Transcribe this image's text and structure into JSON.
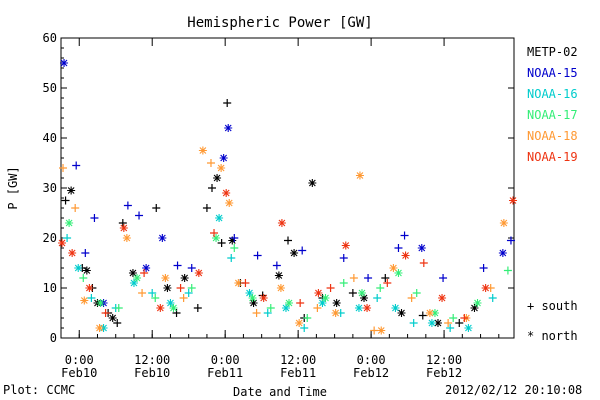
{
  "chart_data": {
    "type": "scatter",
    "title": "Hemispheric Power [GW]",
    "ylabel": "P [GW]",
    "xlabel": "Date and Time",
    "ylim": [
      0,
      60
    ],
    "yticks": [
      0,
      10,
      20,
      30,
      40,
      50,
      60
    ],
    "xlim": [
      "2012-02-09 21:00",
      "2012-02-12 23:30"
    ],
    "xticks": [
      {
        "t": "2012-02-10 00:00",
        "l1": "0:00",
        "l2": "Feb10"
      },
      {
        "t": "2012-02-10 12:00",
        "l1": "12:00",
        "l2": "Feb10"
      },
      {
        "t": "2012-02-11 00:00",
        "l1": "0:00",
        "l2": "Feb11"
      },
      {
        "t": "2012-02-11 12:00",
        "l1": "12:00",
        "l2": "Feb11"
      },
      {
        "t": "2012-02-12 00:00",
        "l1": "0:00",
        "l2": "Feb12"
      },
      {
        "t": "2012-02-12 12:00",
        "l1": "12:00",
        "l2": "Feb12"
      }
    ],
    "grid": false,
    "legend_position": "right",
    "hemisphere_legend": [
      {
        "symbol": "+",
        "label": "south"
      },
      {
        "symbol": "*",
        "label": "north"
      }
    ],
    "series": [
      {
        "name": "METP-02",
        "color": "#000000",
        "points": [
          {
            "t": "2012-02-09 21:45",
            "v": 27.5,
            "h": "S"
          },
          {
            "t": "2012-02-09 22:40",
            "v": 29.5,
            "h": "N"
          },
          {
            "t": "2012-02-10 00:30",
            "v": 14,
            "h": "S"
          },
          {
            "t": "2012-02-10 01:15",
            "v": 13.5,
            "h": "N"
          },
          {
            "t": "2012-02-10 02:10",
            "v": 10,
            "h": "S"
          },
          {
            "t": "2012-02-10 03:00",
            "v": 7,
            "h": "N"
          },
          {
            "t": "2012-02-10 04:45",
            "v": 5,
            "h": "S"
          },
          {
            "t": "2012-02-10 05:30",
            "v": 4,
            "h": "N"
          },
          {
            "t": "2012-02-10 06:15",
            "v": 3,
            "h": "S"
          },
          {
            "t": "2012-02-10 07:10",
            "v": 23,
            "h": "S"
          },
          {
            "t": "2012-02-10 08:50",
            "v": 13,
            "h": "N"
          },
          {
            "t": "2012-02-10 12:40",
            "v": 26,
            "h": "S"
          },
          {
            "t": "2012-02-10 14:30",
            "v": 10,
            "h": "N"
          },
          {
            "t": "2012-02-10 16:00",
            "v": 5,
            "h": "S"
          },
          {
            "t": "2012-02-10 17:20",
            "v": 12,
            "h": "N"
          },
          {
            "t": "2012-02-10 19:30",
            "v": 6,
            "h": "S"
          },
          {
            "t": "2012-02-10 21:00",
            "v": 26,
            "h": "S"
          },
          {
            "t": "2012-02-10 21:50",
            "v": 30,
            "h": "S"
          },
          {
            "t": "2012-02-10 22:40",
            "v": 32,
            "h": "N"
          },
          {
            "t": "2012-02-10 23:25",
            "v": 19,
            "h": "S"
          },
          {
            "t": "2012-02-11 00:20",
            "v": 47,
            "h": "S"
          },
          {
            "t": "2012-02-11 01:10",
            "v": 19.5,
            "h": "N"
          },
          {
            "t": "2012-02-11 02:30",
            "v": 11,
            "h": "S"
          },
          {
            "t": "2012-02-11 04:40",
            "v": 7,
            "h": "N"
          },
          {
            "t": "2012-02-11 06:10",
            "v": 8.5,
            "h": "S"
          },
          {
            "t": "2012-02-11 08:50",
            "v": 12.5,
            "h": "N"
          },
          {
            "t": "2012-02-11 10:20",
            "v": 19.5,
            "h": "S"
          },
          {
            "t": "2012-02-11 11:20",
            "v": 17,
            "h": "N"
          },
          {
            "t": "2012-02-11 13:00",
            "v": 4,
            "h": "S"
          },
          {
            "t": "2012-02-11 14:20",
            "v": 31,
            "h": "N"
          },
          {
            "t": "2012-02-11 16:00",
            "v": 8,
            "h": "S"
          },
          {
            "t": "2012-02-11 18:20",
            "v": 7,
            "h": "N"
          },
          {
            "t": "2012-02-11 21:00",
            "v": 9,
            "h": "S"
          },
          {
            "t": "2012-02-11 22:50",
            "v": 8,
            "h": "N"
          },
          {
            "t": "2012-02-12 02:20",
            "v": 12,
            "h": "S"
          },
          {
            "t": "2012-02-12 05:00",
            "v": 5,
            "h": "N"
          },
          {
            "t": "2012-02-12 08:30",
            "v": 4.5,
            "h": "S"
          },
          {
            "t": "2012-02-12 11:00",
            "v": 3,
            "h": "N"
          },
          {
            "t": "2012-02-12 14:30",
            "v": 3,
            "h": "S"
          },
          {
            "t": "2012-02-12 17:00",
            "v": 6,
            "h": "N"
          }
        ]
      },
      {
        "name": "NOAA-15",
        "color": "#0000cc",
        "points": [
          {
            "t": "2012-02-09 21:30",
            "v": 55,
            "h": "N"
          },
          {
            "t": "2012-02-09 23:30",
            "v": 34.5,
            "h": "S"
          },
          {
            "t": "2012-02-10 01:00",
            "v": 17,
            "h": "S"
          },
          {
            "t": "2012-02-10 02:30",
            "v": 24,
            "h": "S"
          },
          {
            "t": "2012-02-10 04:00",
            "v": 7,
            "h": "N"
          },
          {
            "t": "2012-02-10 08:00",
            "v": 26.5,
            "h": "S"
          },
          {
            "t": "2012-02-10 09:50",
            "v": 24.5,
            "h": "S"
          },
          {
            "t": "2012-02-10 11:00",
            "v": 14,
            "h": "N"
          },
          {
            "t": "2012-02-10 13:40",
            "v": 20,
            "h": "N"
          },
          {
            "t": "2012-02-10 16:10",
            "v": 14.5,
            "h": "S"
          },
          {
            "t": "2012-02-10 18:30",
            "v": 14,
            "h": "S"
          },
          {
            "t": "2012-02-10 23:45",
            "v": 36,
            "h": "N"
          },
          {
            "t": "2012-02-11 00:30",
            "v": 42,
            "h": "N"
          },
          {
            "t": "2012-02-11 01:30",
            "v": 20,
            "h": "S"
          },
          {
            "t": "2012-02-11 05:20",
            "v": 16.5,
            "h": "S"
          },
          {
            "t": "2012-02-11 08:30",
            "v": 14.5,
            "h": "S"
          },
          {
            "t": "2012-02-11 12:40",
            "v": 17.5,
            "h": "S"
          },
          {
            "t": "2012-02-11 19:30",
            "v": 16,
            "h": "S"
          },
          {
            "t": "2012-02-11 23:30",
            "v": 12,
            "h": "S"
          },
          {
            "t": "2012-02-12 04:30",
            "v": 18,
            "h": "S"
          },
          {
            "t": "2012-02-12 05:30",
            "v": 20.5,
            "h": "S"
          },
          {
            "t": "2012-02-12 08:20",
            "v": 18,
            "h": "N"
          },
          {
            "t": "2012-02-12 11:50",
            "v": 12,
            "h": "S"
          },
          {
            "t": "2012-02-12 18:30",
            "v": 14,
            "h": "S"
          },
          {
            "t": "2012-02-12 21:40",
            "v": 17,
            "h": "N"
          },
          {
            "t": "2012-02-12 23:00",
            "v": 19.5,
            "h": "S"
          }
        ]
      },
      {
        "name": "NOAA-16",
        "color": "#00cccc",
        "points": [
          {
            "t": "2012-02-09 22:00",
            "v": 20,
            "h": "S"
          },
          {
            "t": "2012-02-09 23:50",
            "v": 14,
            "h": "N"
          },
          {
            "t": "2012-02-10 02:00",
            "v": 8,
            "h": "S"
          },
          {
            "t": "2012-02-10 04:00",
            "v": 2,
            "h": "N"
          },
          {
            "t": "2012-02-10 06:00",
            "v": 6,
            "h": "S"
          },
          {
            "t": "2012-02-10 09:00",
            "v": 11,
            "h": "N"
          },
          {
            "t": "2012-02-10 12:00",
            "v": 9,
            "h": "S"
          },
          {
            "t": "2012-02-10 15:00",
            "v": 7,
            "h": "N"
          },
          {
            "t": "2012-02-10 18:00",
            "v": 9,
            "h": "S"
          },
          {
            "t": "2012-02-10 23:00",
            "v": 24,
            "h": "N"
          },
          {
            "t": "2012-02-11 01:00",
            "v": 16,
            "h": "S"
          },
          {
            "t": "2012-02-11 04:00",
            "v": 9,
            "h": "N"
          },
          {
            "t": "2012-02-11 07:00",
            "v": 5,
            "h": "S"
          },
          {
            "t": "2012-02-11 10:00",
            "v": 6,
            "h": "N"
          },
          {
            "t": "2012-02-11 13:00",
            "v": 2,
            "h": "S"
          },
          {
            "t": "2012-02-11 16:00",
            "v": 7,
            "h": "N"
          },
          {
            "t": "2012-02-11 19:00",
            "v": 5,
            "h": "S"
          },
          {
            "t": "2012-02-11 22:00",
            "v": 6,
            "h": "N"
          },
          {
            "t": "2012-02-12 01:00",
            "v": 8,
            "h": "S"
          },
          {
            "t": "2012-02-12 04:00",
            "v": 6,
            "h": "N"
          },
          {
            "t": "2012-02-12 07:00",
            "v": 3,
            "h": "S"
          },
          {
            "t": "2012-02-12 10:00",
            "v": 3,
            "h": "N"
          },
          {
            "t": "2012-02-12 13:00",
            "v": 2,
            "h": "S"
          },
          {
            "t": "2012-02-12 16:00",
            "v": 2,
            "h": "N"
          },
          {
            "t": "2012-02-12 20:00",
            "v": 8,
            "h": "S"
          }
        ]
      },
      {
        "name": "NOAA-17",
        "color": "#33ee77",
        "points": [
          {
            "t": "2012-02-09 22:20",
            "v": 23,
            "h": "N"
          },
          {
            "t": "2012-02-10 00:40",
            "v": 12,
            "h": "S"
          },
          {
            "t": "2012-02-10 03:30",
            "v": 7,
            "h": "N"
          },
          {
            "t": "2012-02-10 06:30",
            "v": 6,
            "h": "S"
          },
          {
            "t": "2012-02-10 09:30",
            "v": 12,
            "h": "N"
          },
          {
            "t": "2012-02-10 12:30",
            "v": 8,
            "h": "S"
          },
          {
            "t": "2012-02-10 15:30",
            "v": 6,
            "h": "N"
          },
          {
            "t": "2012-02-10 18:30",
            "v": 10,
            "h": "S"
          },
          {
            "t": "2012-02-10 22:30",
            "v": 20,
            "h": "N"
          },
          {
            "t": "2012-02-11 01:30",
            "v": 18,
            "h": "S"
          },
          {
            "t": "2012-02-11 04:30",
            "v": 8,
            "h": "N"
          },
          {
            "t": "2012-02-11 07:30",
            "v": 6,
            "h": "S"
          },
          {
            "t": "2012-02-11 10:30",
            "v": 7,
            "h": "N"
          },
          {
            "t": "2012-02-11 13:30",
            "v": 4,
            "h": "S"
          },
          {
            "t": "2012-02-11 16:30",
            "v": 8,
            "h": "N"
          },
          {
            "t": "2012-02-11 19:30",
            "v": 11,
            "h": "S"
          },
          {
            "t": "2012-02-11 22:30",
            "v": 9,
            "h": "N"
          },
          {
            "t": "2012-02-12 01:30",
            "v": 10,
            "h": "S"
          },
          {
            "t": "2012-02-12 04:30",
            "v": 13,
            "h": "N"
          },
          {
            "t": "2012-02-12 07:30",
            "v": 9,
            "h": "S"
          },
          {
            "t": "2012-02-12 10:30",
            "v": 5,
            "h": "N"
          },
          {
            "t": "2012-02-12 13:30",
            "v": 4,
            "h": "S"
          },
          {
            "t": "2012-02-12 17:30",
            "v": 7,
            "h": "N"
          },
          {
            "t": "2012-02-12 22:30",
            "v": 13.5,
            "h": "S"
          }
        ]
      },
      {
        "name": "NOAA-18",
        "color": "#ff9933",
        "points": [
          {
            "t": "2012-02-09 21:20",
            "v": 34,
            "h": "S"
          },
          {
            "t": "2012-02-09 23:20",
            "v": 26,
            "h": "S"
          },
          {
            "t": "2012-02-10 00:50",
            "v": 7.5,
            "h": "N"
          },
          {
            "t": "2012-02-10 03:20",
            "v": 2,
            "h": "N"
          },
          {
            "t": "2012-02-10 07:50",
            "v": 20,
            "h": "N"
          },
          {
            "t": "2012-02-10 10:20",
            "v": 9,
            "h": "S"
          },
          {
            "t": "2012-02-10 14:10",
            "v": 12,
            "h": "N"
          },
          {
            "t": "2012-02-10 17:10",
            "v": 8,
            "h": "S"
          },
          {
            "t": "2012-02-10 20:20",
            "v": 37.5,
            "h": "N"
          },
          {
            "t": "2012-02-10 21:40",
            "v": 35,
            "h": "S"
          },
          {
            "t": "2012-02-10 23:20",
            "v": 34,
            "h": "N"
          },
          {
            "t": "2012-02-11 00:40",
            "v": 27,
            "h": "N"
          },
          {
            "t": "2012-02-11 02:10",
            "v": 11,
            "h": "N"
          },
          {
            "t": "2012-02-11 05:10",
            "v": 5,
            "h": "S"
          },
          {
            "t": "2012-02-11 09:10",
            "v": 10,
            "h": "N"
          },
          {
            "t": "2012-02-11 12:10",
            "v": 3,
            "h": "N"
          },
          {
            "t": "2012-02-11 15:10",
            "v": 6,
            "h": "S"
          },
          {
            "t": "2012-02-11 18:10",
            "v": 5,
            "h": "N"
          },
          {
            "t": "2012-02-11 21:10",
            "v": 12,
            "h": "S"
          },
          {
            "t": "2012-02-11 22:10",
            "v": 32.5,
            "h": "N"
          },
          {
            "t": "2012-02-12 00:30",
            "v": 1.5,
            "h": "S"
          },
          {
            "t": "2012-02-12 01:40",
            "v": 1.5,
            "h": "N"
          },
          {
            "t": "2012-02-12 03:40",
            "v": 14,
            "h": "N"
          },
          {
            "t": "2012-02-12 06:40",
            "v": 8,
            "h": "S"
          },
          {
            "t": "2012-02-12 09:40",
            "v": 5,
            "h": "N"
          },
          {
            "t": "2012-02-12 12:40",
            "v": 3,
            "h": "S"
          },
          {
            "t": "2012-02-12 15:40",
            "v": 4,
            "h": "N"
          },
          {
            "t": "2012-02-12 19:40",
            "v": 10,
            "h": "S"
          },
          {
            "t": "2012-02-12 21:50",
            "v": 23,
            "h": "N"
          }
        ]
      },
      {
        "name": "NOAA-19",
        "color": "#ee3311",
        "points": [
          {
            "t": "2012-02-09 21:10",
            "v": 19,
            "h": "N"
          },
          {
            "t": "2012-02-09 22:50",
            "v": 17,
            "h": "N"
          },
          {
            "t": "2012-02-10 01:40",
            "v": 10,
            "h": "N"
          },
          {
            "t": "2012-02-10 04:20",
            "v": 5,
            "h": "S"
          },
          {
            "t": "2012-02-10 07:20",
            "v": 22,
            "h": "N"
          },
          {
            "t": "2012-02-10 10:40",
            "v": 13,
            "h": "S"
          },
          {
            "t": "2012-02-10 13:20",
            "v": 6,
            "h": "N"
          },
          {
            "t": "2012-02-10 16:40",
            "v": 10,
            "h": "S"
          },
          {
            "t": "2012-02-10 19:40",
            "v": 13,
            "h": "N"
          },
          {
            "t": "2012-02-10 22:10",
            "v": 21,
            "h": "S"
          },
          {
            "t": "2012-02-11 00:10",
            "v": 29,
            "h": "N"
          },
          {
            "t": "2012-02-11 03:20",
            "v": 11,
            "h": "S"
          },
          {
            "t": "2012-02-11 06:20",
            "v": 8,
            "h": "N"
          },
          {
            "t": "2012-02-11 09:20",
            "v": 23,
            "h": "N"
          },
          {
            "t": "2012-02-11 12:20",
            "v": 7,
            "h": "S"
          },
          {
            "t": "2012-02-11 15:20",
            "v": 9,
            "h": "N"
          },
          {
            "t": "2012-02-11 17:20",
            "v": 10,
            "h": "S"
          },
          {
            "t": "2012-02-11 19:50",
            "v": 18.5,
            "h": "N"
          },
          {
            "t": "2012-02-11 23:20",
            "v": 6,
            "h": "N"
          },
          {
            "t": "2012-02-12 02:40",
            "v": 11,
            "h": "S"
          },
          {
            "t": "2012-02-12 05:40",
            "v": 16.5,
            "h": "N"
          },
          {
            "t": "2012-02-12 08:40",
            "v": 15,
            "h": "S"
          },
          {
            "t": "2012-02-12 11:40",
            "v": 8,
            "h": "N"
          },
          {
            "t": "2012-02-12 15:20",
            "v": 4,
            "h": "S"
          },
          {
            "t": "2012-02-12 18:50",
            "v": 10,
            "h": "N"
          },
          {
            "t": "2012-02-12 23:20",
            "v": 27.5,
            "h": "N"
          }
        ]
      }
    ]
  },
  "footer": {
    "plot_label": "Plot: CCMC",
    "timestamp": "2012/02/12 20:10:08"
  }
}
